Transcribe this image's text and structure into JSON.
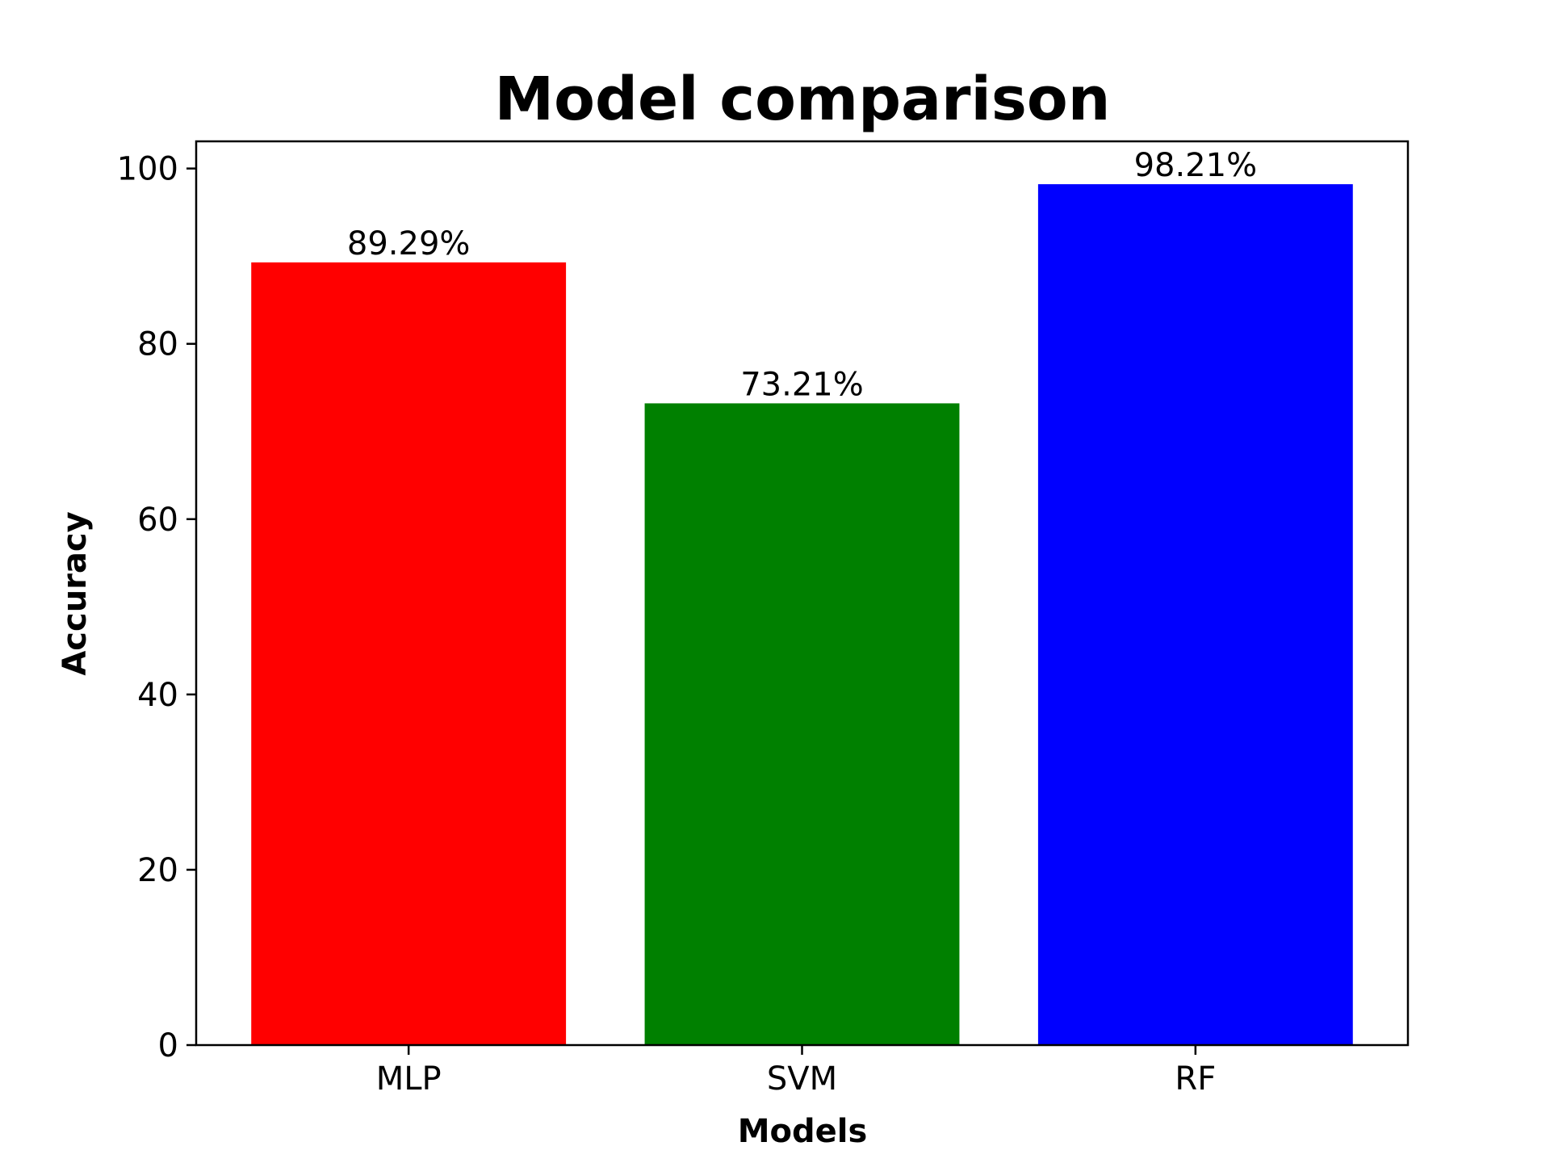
{
  "chart_data": {
    "type": "bar",
    "title": "Model comparison",
    "xlabel": "Models",
    "ylabel": "Accuracy",
    "categories": [
      "MLP",
      "SVM",
      "RF"
    ],
    "values": [
      89.29,
      73.21,
      98.21
    ],
    "data_labels": [
      "89.29%",
      "73.21%",
      "98.21%"
    ],
    "colors": [
      "#ff0000",
      "#008000",
      "#0000ff"
    ],
    "ylim": [
      0,
      103.1
    ],
    "yticks": [
      0,
      20,
      40,
      60,
      80,
      100
    ],
    "grid": false,
    "legend": "none"
  }
}
